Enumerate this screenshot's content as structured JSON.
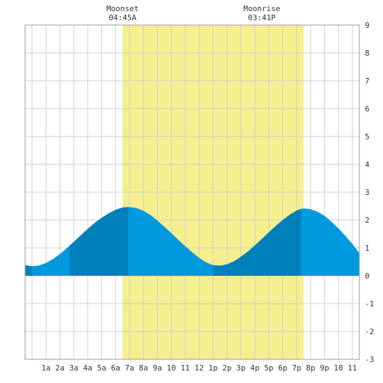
{
  "chart_data": {
    "type": "area",
    "x_tick_labels": [
      "1a",
      "2a",
      "3a",
      "4a",
      "5a",
      "6a",
      "7a",
      "8a",
      "9a",
      "10",
      "11",
      "12",
      "1p",
      "2p",
      "3p",
      "4p",
      "5p",
      "6p",
      "7p",
      "8p",
      "9p",
      "10",
      "11"
    ],
    "x_tick_hours": [
      1,
      2,
      3,
      4,
      5,
      6,
      7,
      8,
      9,
      10,
      11,
      12,
      13,
      14,
      15,
      16,
      17,
      18,
      19,
      20,
      21,
      22,
      23
    ],
    "xlim": [
      -0.5,
      23.5
    ],
    "ylim": [
      -3,
      9
    ],
    "y_ticks": [
      -3,
      -2,
      -1,
      0,
      1,
      2,
      3,
      4,
      5,
      6,
      7,
      8,
      9
    ],
    "grid": true,
    "daylight_hours": [
      6.5,
      19.5
    ],
    "series": [
      {
        "x": [
          -0.5,
          0,
          0.5,
          1,
          1.5,
          2,
          2.5,
          3,
          3.5,
          4,
          4.5,
          5,
          5.5,
          6,
          6.5,
          6.9,
          7.5,
          8,
          8.5,
          9,
          9.5,
          10,
          10.5,
          11,
          11.5,
          12,
          12.5,
          13,
          13.5,
          14,
          14.5,
          15,
          15.5,
          16,
          16.5,
          17,
          17.5,
          18,
          18.5,
          19,
          19.3,
          19.5,
          20,
          20.5,
          21,
          21.5,
          22,
          22.5,
          23,
          23.5
        ],
        "y": [
          0.38,
          0.34,
          0.37,
          0.46,
          0.6,
          0.78,
          0.99,
          1.22,
          1.45,
          1.68,
          1.9,
          2.08,
          2.24,
          2.37,
          2.45,
          2.47,
          2.43,
          2.33,
          2.18,
          1.98,
          1.76,
          1.53,
          1.29,
          1.06,
          0.84,
          0.64,
          0.48,
          0.38,
          0.36,
          0.41,
          0.52,
          0.68,
          0.87,
          1.09,
          1.32,
          1.56,
          1.79,
          2.0,
          2.19,
          2.34,
          2.4,
          2.42,
          2.39,
          2.3,
          2.15,
          1.94,
          1.7,
          1.43,
          1.14,
          0.82
        ]
      }
    ],
    "dark_bands": [
      [
        -0.5,
        0.0
      ],
      [
        2.7,
        6.9
      ],
      [
        13.0,
        19.3
      ]
    ],
    "colors": {
      "water_light": "#0099dd",
      "water_dark": "#0080bb",
      "daylight": "#f5ef90",
      "grid": "#cccccc",
      "border": "#999999"
    }
  },
  "moon_events": [
    {
      "label": "Moonset",
      "time": "04:45A",
      "hour": 6.5
    },
    {
      "label": "Moonrise",
      "time": "03:41P",
      "hour": 16.5
    }
  ]
}
